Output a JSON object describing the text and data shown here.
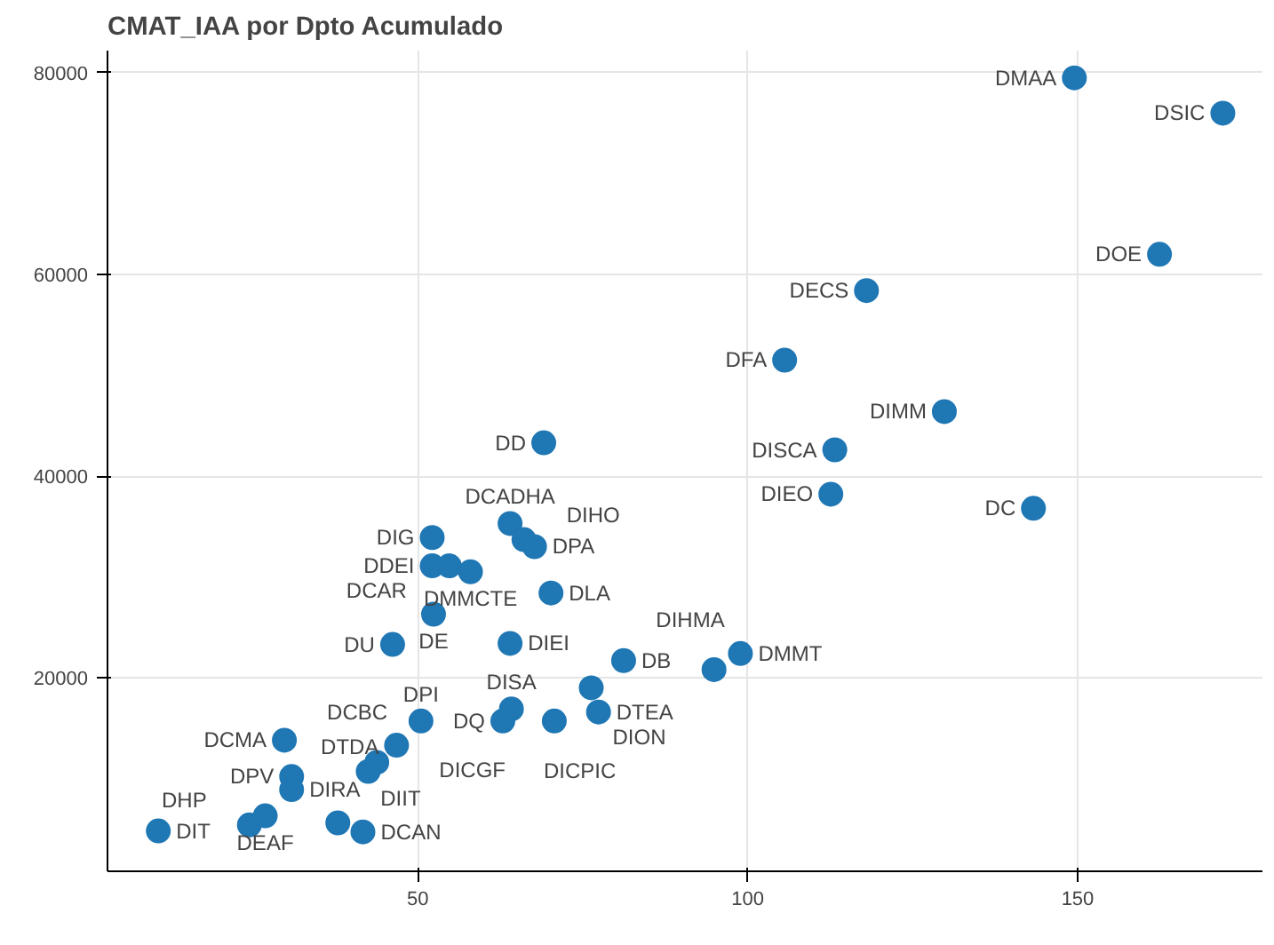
{
  "chart_data": {
    "type": "scatter",
    "title": "CMAT_IAA por Dpto Acumulado",
    "x": [
      149.5,
      172,
      162.4,
      118,
      105.6,
      129.8,
      113.2,
      112.6,
      143.3,
      69.1,
      52.2,
      64,
      66.1,
      67.7,
      52.2,
      54.8,
      58,
      70.2,
      52.4,
      46.2,
      64,
      81.2,
      10.7,
      29.8,
      30.9,
      30.9,
      24.5,
      26.9,
      37.9,
      41.7,
      50.5,
      46.8,
      43.8,
      42.5,
      62.9,
      64.2,
      70.7,
      77.4,
      76.3,
      94.9,
      98.9
    ],
    "series": [
      {
        "color": "#1f77b4",
        "values": [
          79500,
          76000,
          62000,
          58400,
          51500,
          46400,
          42600,
          38200,
          36800,
          43300,
          33900,
          35300,
          33700,
          33000,
          31100,
          31100,
          30500,
          28400,
          26300,
          23300,
          23400,
          21700,
          4800,
          13800,
          10200,
          8900,
          5400,
          6300,
          5600,
          4700,
          15700,
          13300,
          11600,
          10700,
          15700,
          16900,
          15700,
          16600,
          19000,
          20800,
          22400
        ]
      }
    ],
    "annotations": [
      {
        "text": "DMAA",
        "x": 149.5,
        "y": 79500
      },
      {
        "text": "DSIC",
        "x": 172,
        "y": 76000
      },
      {
        "text": "DOE",
        "x": 162.4,
        "y": 62000
      },
      {
        "text": "DECS",
        "x": 118,
        "y": 58400
      },
      {
        "text": "DFA",
        "x": 105.6,
        "y": 51500
      },
      {
        "text": "DIMM",
        "x": 129.8,
        "y": 46400
      },
      {
        "text": "DISCA",
        "x": 113.2,
        "y": 42600
      },
      {
        "text": "DIEO",
        "x": 112.6,
        "y": 38200
      },
      {
        "text": "DC",
        "x": 143.3,
        "y": 36800
      },
      {
        "text": "DD",
        "x": 69.1,
        "y": 43300
      },
      {
        "text": "DIG",
        "x": 52.2,
        "y": 33900
      },
      {
        "text": "DCADHA",
        "x": 64,
        "y": 35300
      },
      {
        "text": "DIHO",
        "x": 66.1,
        "y": 33700
      },
      {
        "text": "DPA",
        "x": 67.7,
        "y": 33000
      },
      {
        "text": "DDEI",
        "x": 52.2,
        "y": 31100
      },
      {
        "text": "DCAR",
        "x": 54.8,
        "y": 31100
      },
      {
        "text": "DMMCTE",
        "x": 58,
        "y": 30500
      },
      {
        "text": "DLA",
        "x": 70.2,
        "y": 28400
      },
      {
        "text": "DE",
        "x": 52.4,
        "y": 26300
      },
      {
        "text": "DU",
        "x": 46.2,
        "y": 23300
      },
      {
        "text": "DIEI",
        "x": 64,
        "y": 23400
      },
      {
        "text": "DB",
        "x": 81.2,
        "y": 21700
      },
      {
        "text": "DIT",
        "x": 10.7,
        "y": 4800
      },
      {
        "text": "DCMA",
        "x": 29.8,
        "y": 13800
      },
      {
        "text": "DPV",
        "x": 30.9,
        "y": 10200
      },
      {
        "text": "DIRA",
        "x": 30.9,
        "y": 8900
      },
      {
        "text": "DHP",
        "x": 24.5,
        "y": 5400
      },
      {
        "text": "DEAF",
        "x": 26.9,
        "y": 6300
      },
      {
        "text": "DIIT",
        "x": 37.9,
        "y": 5600
      },
      {
        "text": "DCAN",
        "x": 41.7,
        "y": 4700
      },
      {
        "text": "DPI",
        "x": 50.5,
        "y": 15700
      },
      {
        "text": "DICGF",
        "x": 46.8,
        "y": 13300
      },
      {
        "text": "DCBC",
        "x": 43.8,
        "y": 11600
      },
      {
        "text": "DTDA",
        "x": 42.5,
        "y": 10700
      },
      {
        "text": "DQ",
        "x": 62.9,
        "y": 15700
      },
      {
        "text": "DISA",
        "x": 64.2,
        "y": 16900
      },
      {
        "text": "DICPIC",
        "x": 70.7,
        "y": 15700
      },
      {
        "text": "DTEA",
        "x": 77.4,
        "y": 16600
      },
      {
        "text": "DION",
        "x": 76.3,
        "y": 19000
      },
      {
        "text": "DIHMA",
        "x": 94.9,
        "y": 20800
      },
      {
        "text": "DMMT",
        "x": 98.9,
        "y": 22400
      }
    ],
    "xlim": [
      3,
      178
    ],
    "ylim": [
      800,
      82200
    ],
    "xticks": [
      50,
      100,
      150
    ],
    "yticks": [
      20000,
      40000,
      60000,
      80000
    ],
    "grid": true,
    "marker": "circle"
  }
}
